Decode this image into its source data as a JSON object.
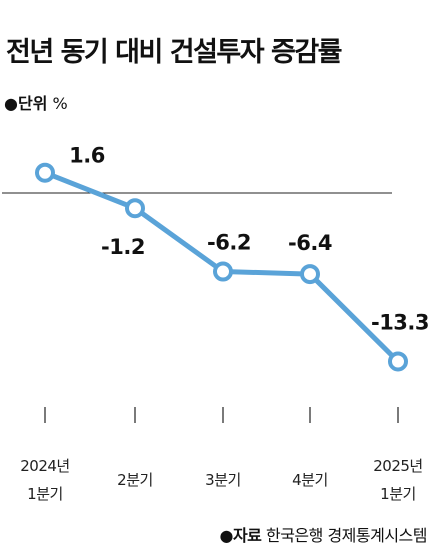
{
  "chart_data": {
    "type": "line",
    "title": "전년 동기 대비 건설투자 증감률",
    "unit_label": "단위",
    "unit": "%",
    "categories": [
      [
        "2024년",
        "1분기"
      ],
      [
        "2분기"
      ],
      [
        "3분기"
      ],
      [
        "4분기"
      ],
      [
        "2025년",
        "1분기"
      ]
    ],
    "values": [
      1.6,
      -1.2,
      -6.2,
      -6.4,
      -13.3
    ],
    "value_labels": [
      "1.6",
      "-1.2",
      "-6.2",
      "-6.4",
      "-13.3"
    ],
    "ylim": [
      -15,
      3
    ],
    "baseline": 0,
    "grid": false,
    "line_color": "#5aa3d8"
  },
  "source": {
    "label": "자료",
    "text": "한국은행 경제통계시스템"
  }
}
